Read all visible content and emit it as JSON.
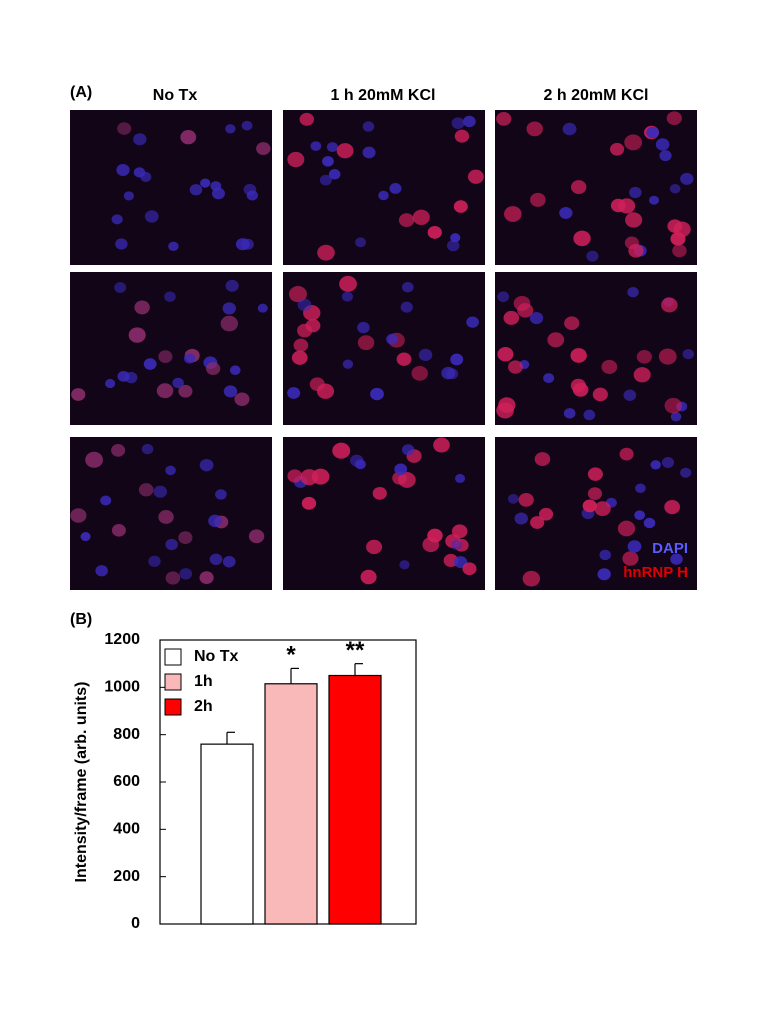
{
  "panel_a": {
    "label": "(A)",
    "columns": [
      "No Tx",
      "1 h 20mM KCl",
      "2 h 20mM KCl"
    ],
    "legend": [
      "DAPI",
      "hnRNP H"
    ]
  },
  "chart_data": {
    "type": "bar",
    "panel_label": "(B)",
    "ylabel": "Intensity/frame (arb. units)",
    "categories": [
      null
    ],
    "series": [
      {
        "name": "No Tx",
        "color": "#ffffff",
        "values": [
          760
        ],
        "errors": [
          50
        ],
        "marker_label": null
      },
      {
        "name": "1h",
        "color": "#f9b9b9",
        "values": [
          1015
        ],
        "errors": [
          65
        ],
        "marker_label": "*"
      },
      {
        "name": "2h",
        "color": "#ff0000",
        "values": [
          1050
        ],
        "errors": [
          50
        ],
        "marker_label": "**"
      }
    ],
    "ylim": [
      0,
      1200
    ],
    "yticks": [
      0,
      200,
      400,
      600,
      800,
      1000,
      1200
    ],
    "legend": "upper left"
  }
}
